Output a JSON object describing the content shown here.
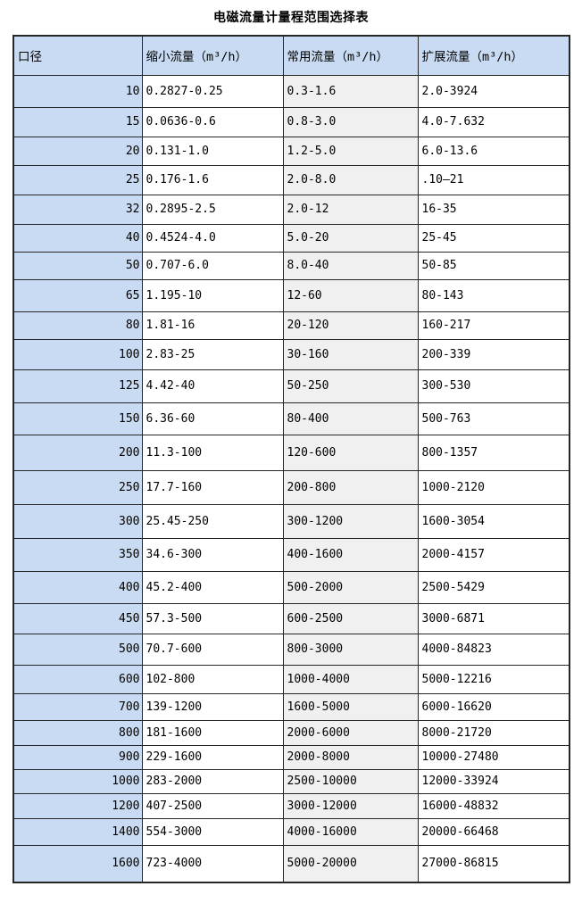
{
  "page_title": "电磁流量计量程范围选择表",
  "table": {
    "columns": [
      "口径",
      "缩小流量（m³/h）",
      "常用流量（m³/h）",
      "扩展流量（m³/h）"
    ],
    "rows": [
      [
        "10",
        "0.2827-0.25",
        "0.3-1.6",
        "2.0-3924"
      ],
      [
        "15",
        "0.0636-0.6",
        "0.8-3.0",
        "4.0-7.632"
      ],
      [
        "20",
        "0.131-1.0",
        "1.2-5.0",
        "6.0-13.6"
      ],
      [
        "25",
        "0.176-1.6",
        "2.0-8.0",
        ".10—21"
      ],
      [
        "32",
        "0.2895-2.5",
        "2.0-12",
        "16-35"
      ],
      [
        "40",
        "0.4524-4.0",
        "5.0-20",
        "25-45"
      ],
      [
        "50",
        "0.707-6.0",
        "8.0-40",
        "50-85"
      ],
      [
        "65",
        "1.195-10",
        "12-60",
        "80-143"
      ],
      [
        "80",
        "1.81-16",
        "20-120",
        "160-217"
      ],
      [
        "100",
        "2.83-25",
        "30-160",
        "200-339"
      ],
      [
        "125",
        "4.42-40",
        "50-250",
        "300-530"
      ],
      [
        "150",
        "6.36-60",
        "80-400",
        "500-763"
      ],
      [
        "200",
        "11.3-100",
        "120-600",
        "800-1357"
      ],
      [
        "250",
        "17.7-160",
        "200-800",
        "1000-2120"
      ],
      [
        "300",
        "25.45-250",
        "300-1200",
        "1600-3054"
      ],
      [
        "350",
        "34.6-300",
        "400-1600",
        "2000-4157"
      ],
      [
        "400",
        "45.2-400",
        "500-2000",
        "2500-5429"
      ],
      [
        "450",
        "57.3-500",
        "600-2500",
        "3000-6871"
      ],
      [
        "500",
        "70.7-600",
        "800-3000",
        "4000-84823"
      ],
      [
        "600",
        "102-800",
        "1000-4000",
        "5000-12216"
      ],
      [
        "700",
        "139-1200",
        "1600-5000",
        "6000-16620"
      ],
      [
        "800",
        "181-1600",
        "2000-6000",
        "8000-21720"
      ],
      [
        "900",
        "229-1600",
        "2000-8000",
        "10000-27480"
      ],
      [
        "1000",
        "283-2000",
        "2500-10000",
        "12000-33924"
      ],
      [
        "1200",
        "407-2500",
        "3000-12000",
        "16000-48832"
      ],
      [
        "1400",
        "554-3000",
        "4000-16000",
        "20000-66468"
      ],
      [
        "1600",
        "723-4000",
        "5000-20000",
        "27000-86815"
      ]
    ]
  },
  "colors": {
    "header_bg": "#c9dbf2",
    "first_col_bg": "#c9dbf2",
    "common_flow_col_bg": "#f0f0f0",
    "border": "#262626",
    "text": "#000000",
    "page_bg": "#ffffff"
  }
}
